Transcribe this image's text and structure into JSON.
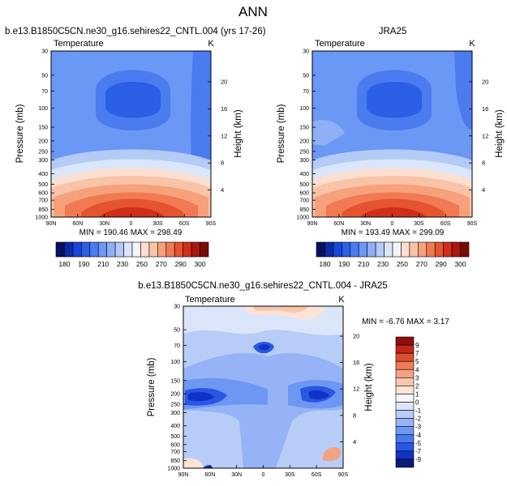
{
  "page_title": "ANN",
  "colors": {
    "scale_full": [
      "#08105e",
      "#0b2aa8",
      "#1746d8",
      "#2a5fe6",
      "#4a7bef",
      "#6b97f5",
      "#8fb0f7",
      "#b4cbf8",
      "#d9e6fb",
      "#f4f4f4",
      "#fbe0d2",
      "#f9c3a8",
      "#f7a07c",
      "#f17a52",
      "#e5532f",
      "#cf2f18",
      "#a8170f",
      "#7a0b06"
    ],
    "scale_diff": [
      "#0b1a78",
      "#1132c6",
      "#2a56e6",
      "#4a78ef",
      "#6e97f3",
      "#95b3f6",
      "#b7cdf8",
      "#dbe6fb",
      "#f6f6f6",
      "#fde3d6",
      "#f9c6ad",
      "#f5a283",
      "#ef7c59",
      "#dd4e2e",
      "#c0261a",
      "#8e0f0a"
    ]
  },
  "chart_data": [
    {
      "id": "model",
      "type": "contour",
      "title": "b.e13.B1850C5CN.ne30_g16.sehires22_CNTL.004 (yrs 17-26)",
      "subtitle_left": "Temperature",
      "subtitle_right": "K",
      "ylabel": "Pressure (mb)",
      "ylabel_right": "Height (km)",
      "xtick_labels": [
        "90N",
        "60N",
        "30N",
        "0",
        "30S",
        "60S",
        "90S"
      ],
      "xlim": [
        -90,
        90
      ],
      "ytick_labels": [
        "30",
        "50",
        "70",
        "100",
        "150",
        "200",
        "250",
        "300",
        "400",
        "500",
        "600",
        "700",
        "850",
        "1000"
      ],
      "ylim_mb": [
        30,
        1000
      ],
      "height_ticks": [
        "4",
        "8",
        "12",
        "16",
        "20"
      ],
      "min": 190.46,
      "max": 298.49,
      "minmax_label": "MIN = 190.46   MAX = 298.49",
      "colorbar_ticks": [
        "180",
        "190",
        "210",
        "230",
        "250",
        "270",
        "290",
        "300"
      ]
    },
    {
      "id": "obs",
      "type": "contour",
      "title": "JRA25",
      "subtitle_left": "Temperature",
      "subtitle_right": "K",
      "ylabel": "Pressure (mb)",
      "ylabel_right": "Height (km)",
      "xtick_labels": [
        "90N",
        "60N",
        "30N",
        "0",
        "30S",
        "60S",
        "90S"
      ],
      "xlim": [
        -90,
        90
      ],
      "ytick_labels": [
        "30",
        "50",
        "70",
        "100",
        "150",
        "200",
        "250",
        "300",
        "400",
        "500",
        "600",
        "700",
        "850",
        "1000"
      ],
      "ylim_mb": [
        30,
        1000
      ],
      "height_ticks": [
        "4",
        "8",
        "12",
        "16",
        "20"
      ],
      "min": 193.49,
      "max": 299.09,
      "minmax_label": "MIN = 193.49   MAX = 299.09",
      "colorbar_ticks": [
        "180",
        "190",
        "210",
        "230",
        "250",
        "270",
        "290",
        "300"
      ]
    },
    {
      "id": "diff",
      "type": "contour",
      "title": "b.e13.B1850C5CN.ne30_g16.sehires22_CNTL.004 - JRA25",
      "subtitle_left": "Temperature",
      "subtitle_right": "K",
      "ylabel": "Pressure (mb)",
      "ylabel_right": "Height (km)",
      "xtick_labels": [
        "90N",
        "60N",
        "30N",
        "0",
        "30S",
        "60S",
        "90S"
      ],
      "xlim": [
        -90,
        90
      ],
      "ytick_labels": [
        "30",
        "50",
        "70",
        "100",
        "150",
        "200",
        "250",
        "300",
        "400",
        "500",
        "600",
        "700",
        "850",
        "1000"
      ],
      "ylim_mb": [
        30,
        1000
      ],
      "height_ticks": [
        "4",
        "8",
        "12",
        "16",
        "20"
      ],
      "min": -6.76,
      "max": 3.17,
      "minmax_label": "MIN = -6.76  MAX =   3.17",
      "colorbar_ticks": [
        "9",
        "7",
        "5",
        "4",
        "3",
        "2",
        "1",
        "0",
        "-1",
        "-2",
        "-3",
        "-4",
        "-5",
        "-7",
        "-9"
      ]
    }
  ]
}
